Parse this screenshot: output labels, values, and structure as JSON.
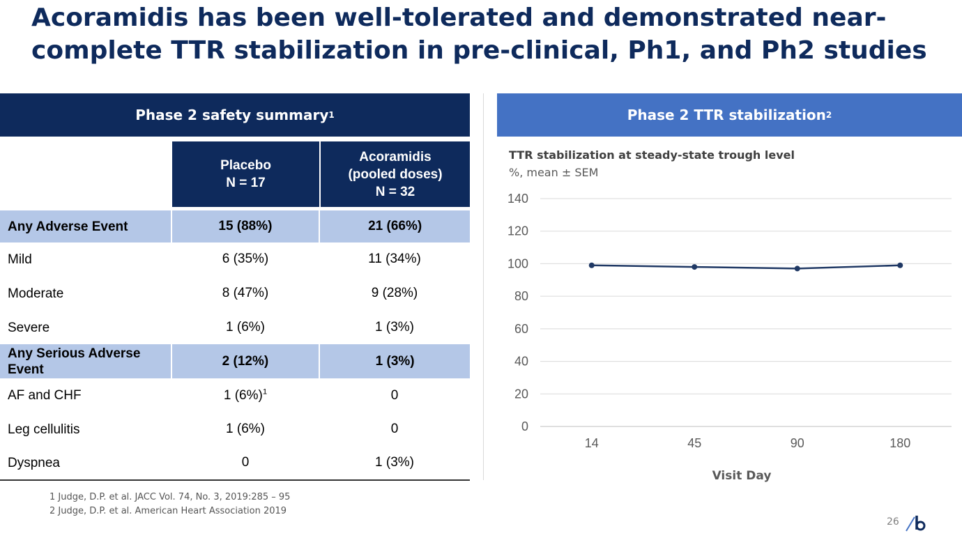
{
  "slide": {
    "title_line1": "Acoramidis has been well-tolerated and demonstrated near-",
    "title_line2": "complete TTR stabilization in pre-clinical, Ph1, and Ph2 studies",
    "page_number": "26"
  },
  "left_panel": {
    "header": "Phase 2 safety summary",
    "header_sup": "1",
    "columns": [
      {
        "line1": "Placebo",
        "line2": "N = 17"
      },
      {
        "line1": "Acoramidis",
        "line2": "(pooled doses)",
        "line3": "N = 32"
      }
    ],
    "rows": [
      {
        "label": "Any Adverse Event",
        "placebo": "15 (88%)",
        "acoramidis": "21 (66%)",
        "highlight": true
      },
      {
        "label": "Mild",
        "placebo": "6 (35%)",
        "acoramidis": "11 (34%)",
        "highlight": false
      },
      {
        "label": "Moderate",
        "placebo": "8 (47%)",
        "acoramidis": "9 (28%)",
        "highlight": false
      },
      {
        "label": "Severe",
        "placebo": "1 (6%)",
        "acoramidis": "1 (3%)",
        "highlight": false
      },
      {
        "label": "Any Serious Adverse Event",
        "placebo": "2 (12%)",
        "acoramidis": "1 (3%)",
        "highlight": true
      },
      {
        "label": "AF and CHF",
        "placebo": "1 (6%)",
        "placebo_sup": "1",
        "acoramidis": "0",
        "highlight": false
      },
      {
        "label": "Leg cellulitis",
        "placebo": "1 (6%)",
        "acoramidis": "0",
        "highlight": false
      },
      {
        "label": "Dyspnea",
        "placebo": "0",
        "acoramidis": "1 (3%)",
        "highlight": false
      }
    ]
  },
  "right_panel": {
    "header": "Phase 2 TTR stabilization",
    "header_sup": "2"
  },
  "footnotes": [
    "1 Judge, D.P. et al. JACC Vol. 74, No. 3, 2019:285 – 95",
    "2 Judge, D.P. et al. American Heart Association 2019"
  ],
  "colors": {
    "navy": "#0e2a5c",
    "blue_header": "#4472c4",
    "row_highlight": "#b4c7e7",
    "series_line": "#1f3864"
  },
  "chart_data": {
    "type": "line",
    "title": "TTR stabilization at steady-state trough level",
    "subtitle": "%, mean ± SEM",
    "xlabel": "Visit Day",
    "ylabel": "",
    "categories": [
      "14",
      "45",
      "90",
      "180"
    ],
    "series": [
      {
        "values": [
          99,
          98,
          97,
          99
        ]
      }
    ],
    "ylim": [
      0,
      140
    ],
    "yticks": [
      0,
      20,
      40,
      60,
      80,
      100,
      120,
      140
    ],
    "grid": true,
    "legend": "none"
  }
}
